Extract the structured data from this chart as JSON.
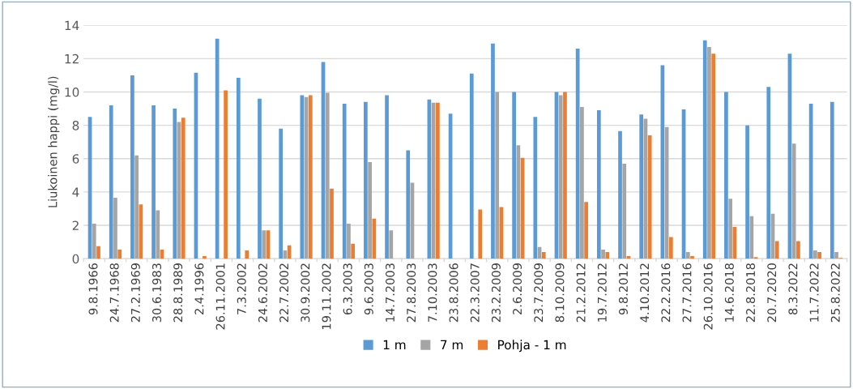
{
  "chart_data": {
    "type": "bar",
    "ylabel": "Liukoinen happi (mg/l)",
    "categories": [
      "9.8.1966",
      "24.7.1968",
      "27.2.1969",
      "30.6.1983",
      "28.8.1989",
      "2.4.1996",
      "26.11.2001",
      "7.3.2002",
      "24.6.2002",
      "22.7.2002",
      "30.9.2002",
      "19.11.2002",
      "6.3.2003",
      "9.6.2003",
      "14.7.2003",
      "27.8.2003",
      "7.10.2003",
      "23.8.2006",
      "22.3.2007",
      "23.2.2009",
      "2.6.2009",
      "23.7.2009",
      "8.10.2009",
      "21.2.2012",
      "19.7.2012",
      "9.8.2012",
      "4.10.2012",
      "22.2.2016",
      "27.7.2016",
      "26.10.2016",
      "14.6.2018",
      "22.8.2018",
      "20.7.2020",
      "8.3.2022",
      "11.7.2022",
      "25.8.2022"
    ],
    "series": [
      {
        "name": "1 m",
        "color": "#5b9bd5",
        "values": [
          8.5,
          9.2,
          11.0,
          9.2,
          9.0,
          11.15,
          13.2,
          10.85,
          9.6,
          7.8,
          9.8,
          11.8,
          9.3,
          9.4,
          9.8,
          6.5,
          9.55,
          8.7,
          11.1,
          12.9,
          10.0,
          8.5,
          10.0,
          12.6,
          8.9,
          7.65,
          8.65,
          11.6,
          8.95,
          13.1,
          10.0,
          8.0,
          10.3,
          12.3,
          9.3,
          9.4
        ]
      },
      {
        "name": "7 m",
        "color": "#a5a5a5",
        "values": [
          2.1,
          3.65,
          6.2,
          2.9,
          8.2,
          null,
          null,
          null,
          1.7,
          0.5,
          9.7,
          9.95,
          2.1,
          5.8,
          1.7,
          4.55,
          9.35,
          null,
          null,
          10.0,
          6.8,
          0.7,
          9.8,
          9.1,
          0.55,
          5.7,
          8.4,
          7.9,
          0.4,
          12.7,
          3.6,
          2.55,
          2.7,
          6.9,
          0.5,
          0.4
        ]
      },
      {
        "name": "Pohja - 1 m",
        "color": "#ed7d31",
        "values": [
          0.75,
          0.55,
          3.25,
          0.55,
          8.45,
          0.15,
          10.1,
          0.5,
          1.7,
          0.8,
          9.8,
          4.2,
          0.9,
          2.4,
          null,
          null,
          9.35,
          null,
          2.95,
          3.1,
          6.05,
          0.4,
          10.0,
          3.4,
          0.4,
          0.15,
          7.4,
          1.3,
          0.15,
          12.3,
          1.9,
          0.1,
          1.05,
          1.05,
          0.4,
          0.05
        ]
      }
    ],
    "ylim": [
      0,
      14
    ],
    "yticks": [
      0,
      2,
      4,
      6,
      8,
      10,
      12,
      14
    ],
    "grid": "y",
    "legend": "bottom"
  }
}
